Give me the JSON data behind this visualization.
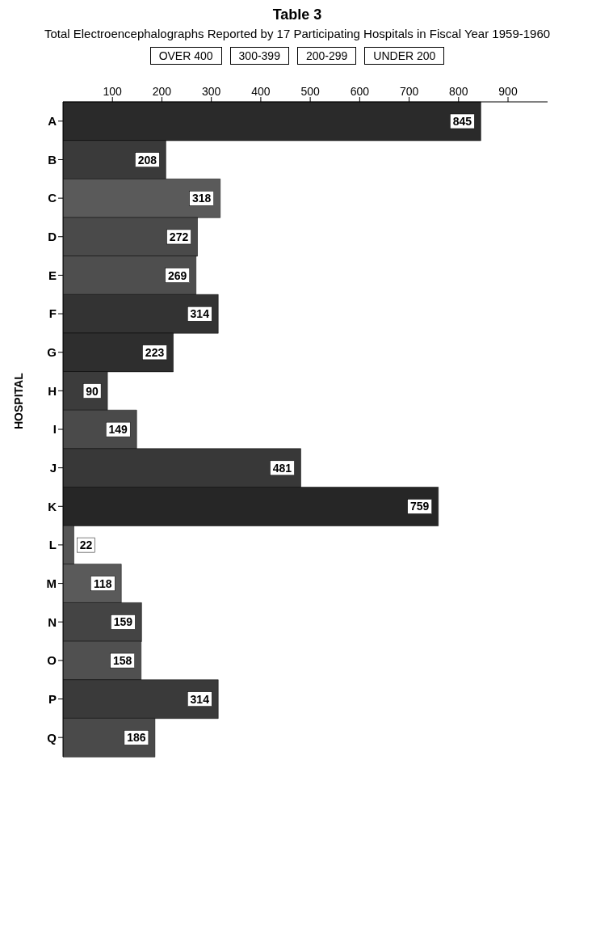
{
  "chart_data": {
    "type": "bar",
    "orientation": "horizontal",
    "title": "Table 3",
    "subtitle": "Total Electroencephalographs Reported by 17 Participating Hospitals in Fiscal Year 1959-1960",
    "ylabel": "HOSPITAL",
    "annotations": [
      "OVER 400",
      "300-399",
      "200-299",
      "UNDER 200"
    ],
    "categories": [
      "A",
      "B",
      "C",
      "D",
      "E",
      "F",
      "G",
      "H",
      "I",
      "J",
      "K",
      "L",
      "M",
      "N",
      "O",
      "P",
      "Q"
    ],
    "values": [
      845,
      208,
      318,
      272,
      269,
      314,
      223,
      90,
      149,
      481,
      759,
      22,
      118,
      159,
      158,
      314,
      186
    ],
    "colors": [
      "#2a2a2a",
      "#3a3a3a",
      "#5a5a5a",
      "#4a4a4a",
      "#4e4e4e",
      "#333333",
      "#2e2e2e",
      "#3c3c3c",
      "#4a4a4a",
      "#383838",
      "#262626",
      "#555555",
      "#5a5a5a",
      "#444444",
      "#505050",
      "#3a3a3a",
      "#4a4a4a"
    ],
    "xlim": [
      0,
      980
    ],
    "xticks": [
      100,
      200,
      300,
      400,
      500,
      600,
      700,
      800,
      900
    ],
    "data_labels": true,
    "grid": false
  }
}
